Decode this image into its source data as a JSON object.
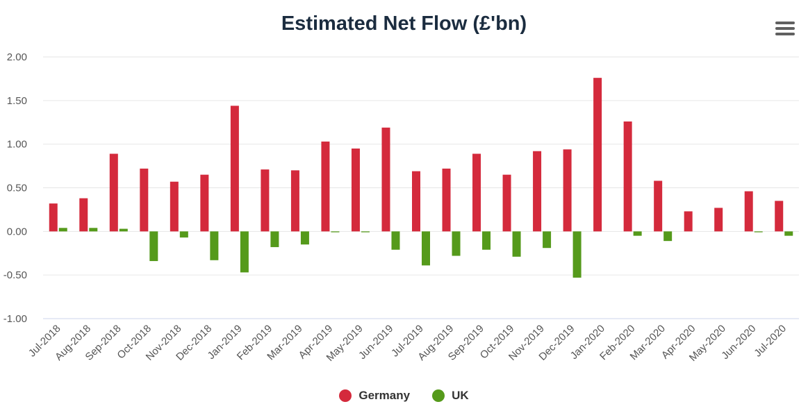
{
  "title": "Estimated Net Flow (£'bn)",
  "menu_icon": "hamburger-menu-icon",
  "chart_data": {
    "type": "bar",
    "title": "Estimated Net Flow (£'bn)",
    "categories": [
      "Jul-2018",
      "Aug-2018",
      "Sep-2018",
      "Oct-2018",
      "Nov-2018",
      "Dec-2018",
      "Jan-2019",
      "Feb-2019",
      "Mar-2019",
      "Apr-2019",
      "May-2019",
      "Jun-2019",
      "Jul-2019",
      "Aug-2019",
      "Sep-2019",
      "Oct-2019",
      "Nov-2019",
      "Dec-2019",
      "Jan-2020",
      "Feb-2020",
      "Mar-2020",
      "Apr-2020",
      "May-2020",
      "Jun-2020",
      "Jul-2020"
    ],
    "series": [
      {
        "name": "Germany",
        "color": "#d42a3c",
        "values": [
          0.32,
          0.38,
          0.89,
          0.72,
          0.57,
          0.65,
          1.44,
          0.71,
          0.7,
          1.03,
          0.95,
          1.19,
          0.69,
          0.72,
          0.89,
          0.65,
          0.92,
          0.94,
          1.76,
          1.26,
          0.58,
          0.23,
          0.27,
          0.46,
          0.35
        ]
      },
      {
        "name": "UK",
        "color": "#559a1b",
        "values": [
          0.04,
          0.04,
          0.03,
          -0.34,
          -0.07,
          -0.33,
          -0.47,
          -0.18,
          -0.15,
          -0.01,
          -0.01,
          -0.21,
          -0.39,
          -0.28,
          -0.21,
          -0.29,
          -0.19,
          -0.53,
          0.0,
          -0.05,
          -0.11,
          0.0,
          0.0,
          -0.01,
          -0.05
        ]
      }
    ],
    "yticks": [
      "2.00",
      "1.50",
      "1.00",
      "0.50",
      "0.00",
      "-0.50",
      "-1.00"
    ],
    "ylim": [
      -1.0,
      2.0
    ],
    "grid": true,
    "legend_position": "bottom-center"
  },
  "legend": [
    {
      "label": "Germany",
      "color": "#d42a3c"
    },
    {
      "label": "UK",
      "color": "#559a1b"
    }
  ]
}
